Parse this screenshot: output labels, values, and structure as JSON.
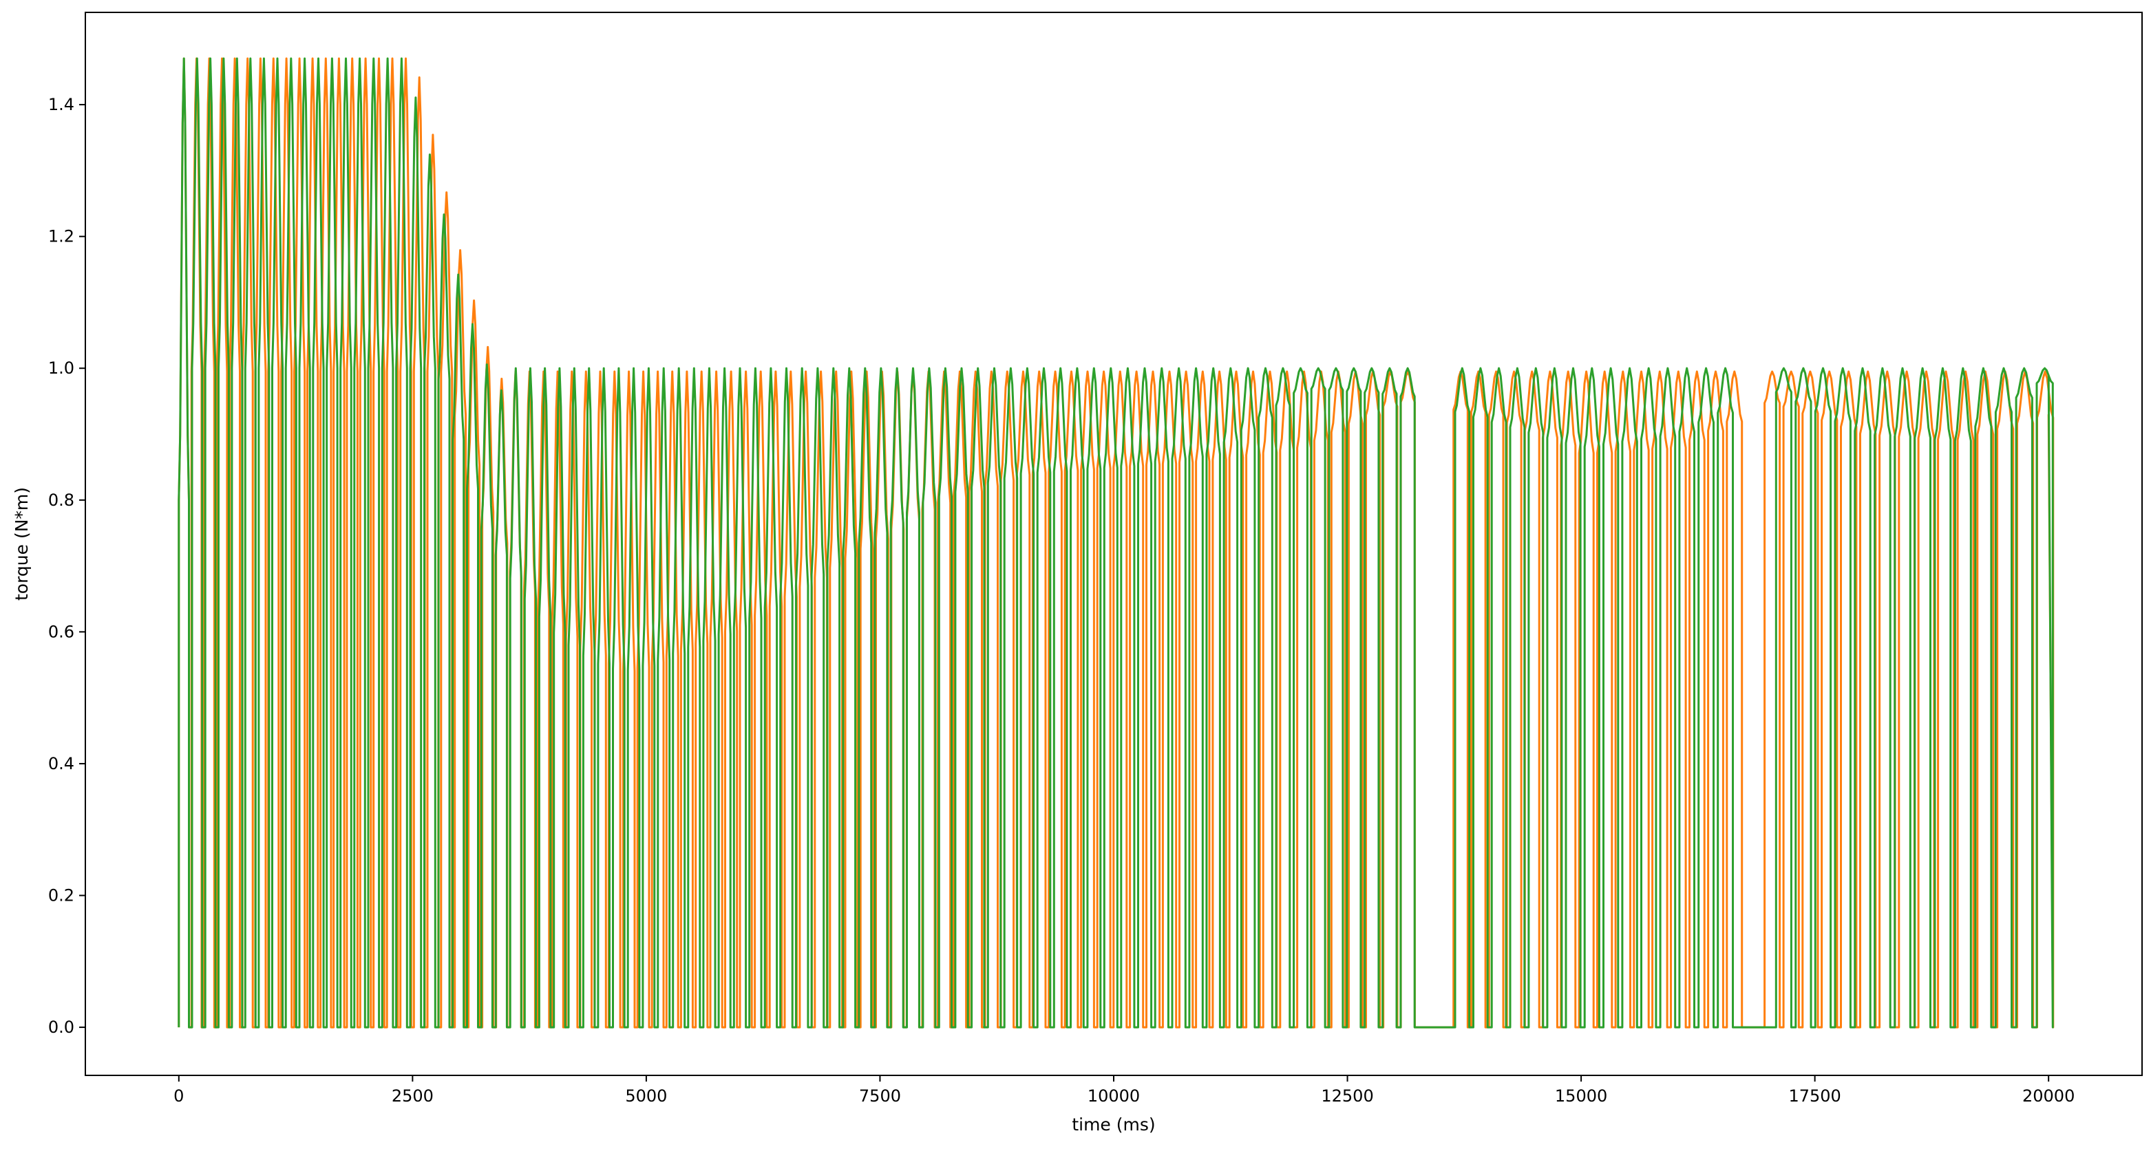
{
  "chart_data": {
    "type": "line",
    "title": "",
    "xlabel": "time (ms)",
    "ylabel": "torque (N*m)",
    "xlim": [
      -1000,
      21000
    ],
    "ylim": [
      -0.073,
      1.54
    ],
    "xticks": [
      0,
      2500,
      5000,
      7500,
      10000,
      12500,
      15000,
      17500,
      20000
    ],
    "xtick_labels": [
      "0",
      "2500",
      "5000",
      "7500",
      "10000",
      "12500",
      "15000",
      "17500",
      "20000"
    ],
    "yticks": [
      0.0,
      0.2,
      0.4,
      0.6,
      0.8,
      1.0,
      1.2,
      1.4
    ],
    "ytick_labels": [
      "0.0",
      "0.2",
      "0.4",
      "0.6",
      "0.8",
      "1.0",
      "1.2",
      "1.4"
    ],
    "grid": false,
    "legend": "none",
    "series": [
      {
        "color": "#ff7f0e",
        "description_values": {
          "x": [
            0,
            250,
            500,
            750,
            1000,
            1250,
            1500,
            1750,
            2000,
            2250,
            2500,
            2750,
            3000,
            3250,
            3500,
            3750,
            4000,
            4250,
            4500,
            4750,
            5000,
            6000,
            7000,
            8000,
            9000,
            10000,
            11000,
            12000,
            13000,
            14000,
            15000,
            16000,
            17000,
            18000,
            19000,
            20000
          ],
          "y": [
            0.8,
            1.47,
            1.47,
            1.47,
            1.47,
            1.47,
            1.47,
            1.44,
            1.39,
            1.34,
            1.2,
            1.05,
            0.9,
            0.78,
            0.7,
            0.65,
            0.61,
            0.58,
            0.56,
            0.54,
            0.55,
            0.61,
            0.7,
            0.79,
            0.84,
            0.85,
            0.86,
            0.88,
            0.95,
            0.93,
            0.87,
            0.88,
            0.95,
            0.9,
            0.89,
            0.93
          ]
        },
        "upper": 0.995,
        "lower": 0.0
      },
      {
        "color": "#2ca02c",
        "description_values": {
          "x": [
            0,
            250,
            500,
            750,
            1000,
            1250,
            1500,
            1750,
            2000,
            2250,
            2500,
            2750,
            3000,
            3250,
            3500,
            3750,
            4000,
            4250,
            4500,
            4750,
            5000,
            6000,
            7000,
            8000,
            9000,
            10000,
            11000,
            12000,
            13000,
            14000,
            15000,
            16000,
            17000,
            18000,
            19000,
            20000
          ],
          "y": [
            0.8,
            1.47,
            1.47,
            1.47,
            1.47,
            1.47,
            1.47,
            1.46,
            1.39,
            1.26,
            1.15,
            1.0,
            0.85,
            0.75,
            0.69,
            0.64,
            0.6,
            0.57,
            0.55,
            0.54,
            0.55,
            0.61,
            0.71,
            0.8,
            0.84,
            0.85,
            0.87,
            0.97,
            0.96,
            0.92,
            0.88,
            0.9,
            0.97,
            0.9,
            0.89,
            0.99
          ]
        },
        "upper": 1.0,
        "lower": 0.0
      }
    ]
  }
}
